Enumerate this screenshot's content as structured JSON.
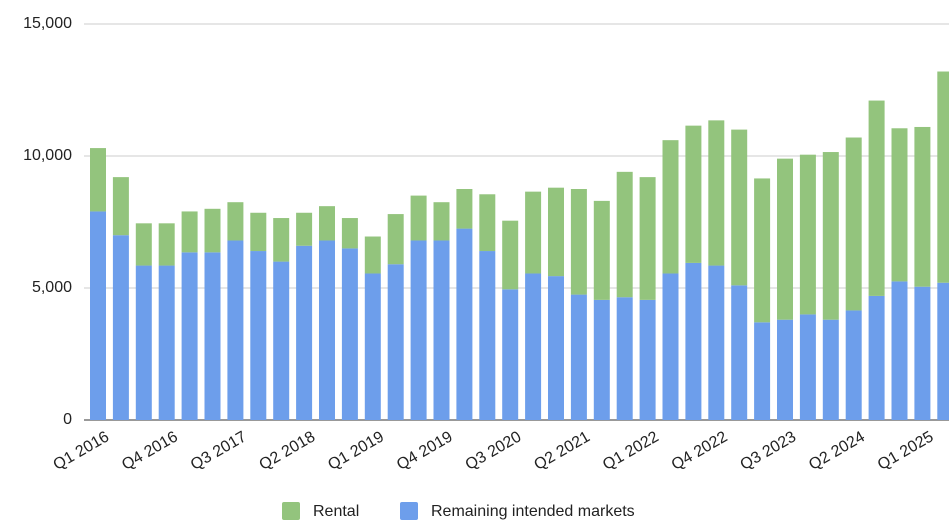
{
  "chart_data": {
    "type": "stacked-bar",
    "categories": [
      "Q1 2016",
      null,
      null,
      "Q4 2016",
      null,
      null,
      "Q3 2017",
      null,
      null,
      "Q2 2018",
      null,
      null,
      "Q1 2019",
      null,
      null,
      "Q4 2019",
      null,
      null,
      "Q3 2020",
      null,
      null,
      "Q2 2021",
      null,
      null,
      "Q1 2022",
      null,
      null,
      "Q4 2022",
      null,
      null,
      "Q3 2023",
      null,
      null,
      "Q2 2024",
      null,
      null,
      "Q1 2025",
      null
    ],
    "series": [
      {
        "name": "Rental",
        "color": "#93c47d",
        "values": [
          2400,
          2200,
          1600,
          1600,
          1550,
          1650,
          1450,
          1450,
          1650,
          1250,
          1300,
          1150,
          1400,
          1900,
          1700,
          1450,
          1500,
          2150,
          2600,
          3100,
          3350,
          4000,
          3750,
          4750,
          4650,
          5050,
          5200,
          5500,
          5900,
          5450,
          6100,
          6050,
          6350,
          6550,
          7400,
          5800,
          6050,
          8000
        ]
      },
      {
        "name": "Remaining intended markets",
        "color": "#6d9eeb",
        "values": [
          7900,
          7000,
          5850,
          5850,
          6350,
          6350,
          6800,
          6400,
          6000,
          6600,
          6800,
          6500,
          5550,
          5900,
          6800,
          6800,
          7250,
          6400,
          4950,
          5550,
          5450,
          4750,
          4550,
          4650,
          4550,
          5550,
          5950,
          5850,
          5100,
          3700,
          3800,
          4000,
          3800,
          4150,
          4700,
          5250,
          5050,
          5200
        ]
      }
    ],
    "ylim": [
      0,
      15000
    ],
    "yticks": [
      0,
      {
        "value": 5000,
        "label": "5,000"
      },
      {
        "value": 10000,
        "label": "10,000"
      },
      {
        "value": 15000,
        "label": "15,000"
      }
    ],
    "grid": true,
    "legend": "bottom"
  }
}
